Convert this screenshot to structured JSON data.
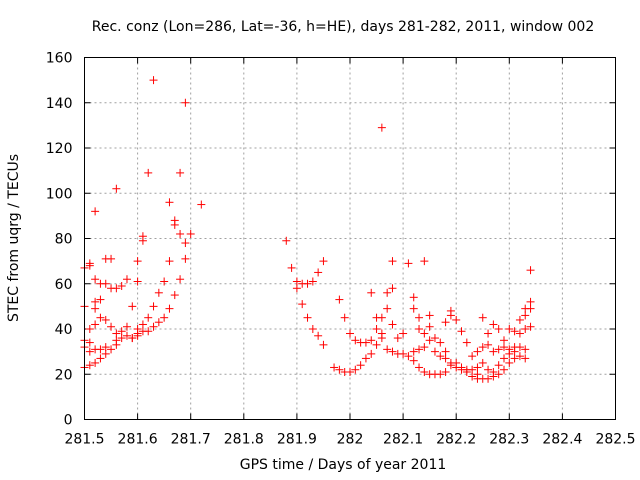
{
  "chart_data": {
    "type": "scatter",
    "title": "Rec. conz (Lon=286, Lat=-36, h=HE), days 281-282, 2011, window 002",
    "xlabel": "GPS time / Days of year 2011",
    "ylabel": "STEC from uqrg / TECUs",
    "xlim": [
      281.5,
      282.5
    ],
    "ylim": [
      0,
      160
    ],
    "x_ticks": [
      281.5,
      281.6,
      281.7,
      281.8,
      281.9,
      282,
      282.1,
      282.2,
      282.3,
      282.4,
      282.5
    ],
    "x_tick_labels": [
      "281.5",
      "281.6",
      "281.7",
      "281.8",
      "281.9",
      "282",
      "282.1",
      "282.2",
      "282.3",
      "282.4",
      "282.5"
    ],
    "y_ticks": [
      0,
      20,
      40,
      60,
      80,
      100,
      120,
      140,
      160
    ],
    "y_tick_labels": [
      "0",
      "20",
      "40",
      "60",
      "80",
      "100",
      "120",
      "140",
      "160"
    ],
    "grid": true,
    "marker": "+",
    "marker_color": "#ff0000",
    "series": [
      {
        "name": "STEC",
        "points": [
          [
            281.5,
            67
          ],
          [
            281.5,
            50
          ],
          [
            281.5,
            35
          ],
          [
            281.5,
            32
          ],
          [
            281.5,
            23
          ],
          [
            281.51,
            69
          ],
          [
            281.51,
            68
          ],
          [
            281.51,
            40
          ],
          [
            281.51,
            34
          ],
          [
            281.51,
            30
          ],
          [
            281.51,
            24
          ],
          [
            281.52,
            92
          ],
          [
            281.52,
            62
          ],
          [
            281.52,
            52
          ],
          [
            281.52,
            49
          ],
          [
            281.52,
            42
          ],
          [
            281.52,
            31
          ],
          [
            281.52,
            25
          ],
          [
            281.53,
            60
          ],
          [
            281.53,
            53
          ],
          [
            281.53,
            45
          ],
          [
            281.53,
            31
          ],
          [
            281.53,
            27
          ],
          [
            281.54,
            71
          ],
          [
            281.54,
            60
          ],
          [
            281.54,
            44
          ],
          [
            281.54,
            32
          ],
          [
            281.54,
            29
          ],
          [
            281.55,
            71
          ],
          [
            281.55,
            58
          ],
          [
            281.55,
            41
          ],
          [
            281.55,
            31
          ],
          [
            281.56,
            102
          ],
          [
            281.56,
            58
          ],
          [
            281.56,
            38
          ],
          [
            281.56,
            35
          ],
          [
            281.56,
            33
          ],
          [
            281.57,
            59
          ],
          [
            281.57,
            39
          ],
          [
            281.57,
            36
          ],
          [
            281.58,
            62
          ],
          [
            281.58,
            41
          ],
          [
            281.58,
            37
          ],
          [
            281.59,
            50
          ],
          [
            281.59,
            36
          ],
          [
            281.59,
            36
          ],
          [
            281.6,
            61
          ],
          [
            281.6,
            70
          ],
          [
            281.6,
            40
          ],
          [
            281.6,
            37
          ],
          [
            281.6,
            38
          ],
          [
            281.61,
            79
          ],
          [
            281.61,
            81
          ],
          [
            281.61,
            42
          ],
          [
            281.61,
            39
          ],
          [
            281.62,
            109
          ],
          [
            281.62,
            45
          ],
          [
            281.62,
            39
          ],
          [
            281.63,
            150
          ],
          [
            281.63,
            50
          ],
          [
            281.63,
            41
          ],
          [
            281.64,
            56
          ],
          [
            281.64,
            43
          ],
          [
            281.65,
            61
          ],
          [
            281.65,
            45
          ],
          [
            281.66,
            70
          ],
          [
            281.66,
            96
          ],
          [
            281.66,
            49
          ],
          [
            281.67,
            86
          ],
          [
            281.67,
            88
          ],
          [
            281.67,
            55
          ],
          [
            281.68,
            109
          ],
          [
            281.68,
            82
          ],
          [
            281.68,
            62
          ],
          [
            281.69,
            140
          ],
          [
            281.69,
            78
          ],
          [
            281.69,
            71
          ],
          [
            281.7,
            82
          ],
          [
            281.72,
            95
          ],
          [
            281.88,
            79
          ],
          [
            281.89,
            67
          ],
          [
            281.9,
            61
          ],
          [
            281.9,
            58
          ],
          [
            281.91,
            60
          ],
          [
            281.91,
            51
          ],
          [
            281.92,
            60
          ],
          [
            281.92,
            45
          ],
          [
            281.93,
            61
          ],
          [
            281.93,
            40
          ],
          [
            281.94,
            65
          ],
          [
            281.94,
            37
          ],
          [
            281.95,
            70
          ],
          [
            281.95,
            33
          ],
          [
            281.97,
            23
          ],
          [
            281.98,
            53
          ],
          [
            281.98,
            22
          ],
          [
            281.99,
            45
          ],
          [
            281.99,
            21
          ],
          [
            282.0,
            38
          ],
          [
            282.0,
            21
          ],
          [
            282.01,
            35
          ],
          [
            282.01,
            22
          ],
          [
            282.02,
            34
          ],
          [
            282.02,
            24
          ],
          [
            282.03,
            34
          ],
          [
            282.03,
            27
          ],
          [
            282.04,
            56
          ],
          [
            282.04,
            35
          ],
          [
            282.04,
            29
          ],
          [
            282.05,
            45
          ],
          [
            282.05,
            40
          ],
          [
            282.05,
            33
          ],
          [
            282.06,
            129
          ],
          [
            282.06,
            45
          ],
          [
            282.06,
            38
          ],
          [
            282.06,
            36
          ],
          [
            282.07,
            56
          ],
          [
            282.07,
            49
          ],
          [
            282.07,
            31
          ],
          [
            282.08,
            70
          ],
          [
            282.08,
            58
          ],
          [
            282.08,
            42
          ],
          [
            282.08,
            30
          ],
          [
            282.09,
            36
          ],
          [
            282.09,
            29
          ],
          [
            282.1,
            38
          ],
          [
            282.1,
            29
          ],
          [
            282.11,
            69
          ],
          [
            282.11,
            28
          ],
          [
            282.12,
            54
          ],
          [
            282.12,
            49
          ],
          [
            282.12,
            30
          ],
          [
            282.12,
            26
          ],
          [
            282.13,
            45
          ],
          [
            282.13,
            40
          ],
          [
            282.13,
            31
          ],
          [
            282.13,
            23
          ],
          [
            282.14,
            70
          ],
          [
            282.14,
            38
          ],
          [
            282.14,
            32
          ],
          [
            282.14,
            21
          ],
          [
            282.15,
            46
          ],
          [
            282.15,
            41
          ],
          [
            282.15,
            35
          ],
          [
            282.15,
            20
          ],
          [
            282.16,
            36
          ],
          [
            282.16,
            30
          ],
          [
            282.16,
            20
          ],
          [
            282.17,
            34
          ],
          [
            282.17,
            28
          ],
          [
            282.17,
            20
          ],
          [
            282.18,
            43
          ],
          [
            282.18,
            30
          ],
          [
            282.18,
            21
          ],
          [
            282.18,
            27
          ],
          [
            282.19,
            48
          ],
          [
            282.19,
            46
          ],
          [
            282.19,
            25
          ],
          [
            282.19,
            24
          ],
          [
            282.2,
            44
          ],
          [
            282.2,
            25
          ],
          [
            282.2,
            23
          ],
          [
            282.21,
            39
          ],
          [
            282.21,
            23
          ],
          [
            282.21,
            22
          ],
          [
            282.22,
            34
          ],
          [
            282.22,
            22
          ],
          [
            282.22,
            21
          ],
          [
            282.23,
            28
          ],
          [
            282.23,
            22
          ],
          [
            282.23,
            19
          ],
          [
            282.24,
            30
          ],
          [
            282.24,
            23
          ],
          [
            282.24,
            20
          ],
          [
            282.24,
            18
          ],
          [
            282.25,
            45
          ],
          [
            282.25,
            32
          ],
          [
            282.25,
            25
          ],
          [
            282.25,
            18
          ],
          [
            282.26,
            38
          ],
          [
            282.26,
            33
          ],
          [
            282.26,
            22
          ],
          [
            282.26,
            18
          ],
          [
            282.27,
            42
          ],
          [
            282.27,
            30
          ],
          [
            282.27,
            21
          ],
          [
            282.27,
            19
          ],
          [
            282.28,
            40
          ],
          [
            282.28,
            31
          ],
          [
            282.28,
            24
          ],
          [
            282.28,
            20
          ],
          [
            282.29,
            35
          ],
          [
            282.29,
            32
          ],
          [
            282.29,
            27
          ],
          [
            282.29,
            22
          ],
          [
            282.3,
            40
          ],
          [
            282.3,
            31
          ],
          [
            282.3,
            29
          ],
          [
            282.3,
            25
          ],
          [
            282.31,
            39
          ],
          [
            282.31,
            32
          ],
          [
            282.31,
            30
          ],
          [
            282.31,
            27
          ],
          [
            282.32,
            44
          ],
          [
            282.32,
            38
          ],
          [
            282.32,
            32
          ],
          [
            282.32,
            28
          ],
          [
            282.33,
            49
          ],
          [
            282.33,
            46
          ],
          [
            282.33,
            40
          ],
          [
            282.33,
            31
          ],
          [
            282.33,
            27
          ],
          [
            282.34,
            66
          ],
          [
            282.34,
            52
          ],
          [
            282.34,
            49
          ],
          [
            282.34,
            41
          ]
        ]
      }
    ]
  }
}
